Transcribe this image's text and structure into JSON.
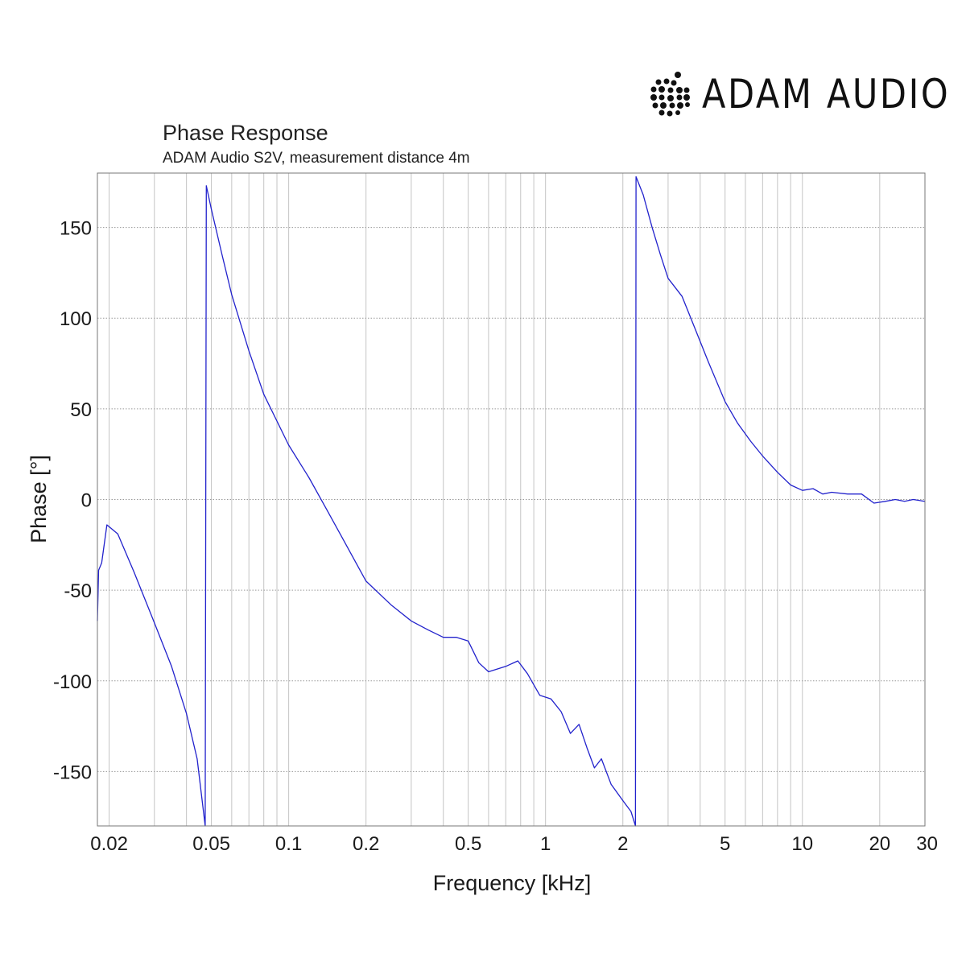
{
  "brand": {
    "name": "ADAM AUDIO",
    "logo_icon": "adam-dot-matrix-logo-icon"
  },
  "chart_data": {
    "type": "line",
    "title": "Phase Response",
    "subtitle": "ADAM Audio S2V, measurement distance 4m",
    "xlabel": "Frequency [kHz]",
    "ylabel": "Phase [°]",
    "xscale": "log",
    "xlim": [
      0.018,
      30
    ],
    "ylim": [
      -180,
      180
    ],
    "grid": true,
    "x_ticks": [
      {
        "value": 0.02,
        "label": "0.02"
      },
      {
        "value": 0.05,
        "label": "0.05"
      },
      {
        "value": 0.1,
        "label": "0.1"
      },
      {
        "value": 0.2,
        "label": "0.2"
      },
      {
        "value": 0.5,
        "label": "0.5"
      },
      {
        "value": 1,
        "label": "1"
      },
      {
        "value": 2,
        "label": "2"
      },
      {
        "value": 5,
        "label": "5"
      },
      {
        "value": 10,
        "label": "10"
      },
      {
        "value": 20,
        "label": "20"
      },
      {
        "value": 30,
        "label": "30"
      }
    ],
    "y_ticks": [
      {
        "value": 150,
        "label": "150"
      },
      {
        "value": 100,
        "label": "100"
      },
      {
        "value": 50,
        "label": "50"
      },
      {
        "value": 0,
        "label": "0"
      },
      {
        "value": -50,
        "label": "-50"
      },
      {
        "value": -100,
        "label": "-100"
      },
      {
        "value": -150,
        "label": "-150"
      }
    ],
    "series": [
      {
        "color": "#2222cc",
        "segments": [
          [
            [
              0.018,
              -67
            ],
            [
              0.0182,
              -39
            ],
            [
              0.0187,
              -35
            ],
            [
              0.0196,
              -14
            ],
            [
              0.0216,
              -19
            ],
            [
              0.025,
              -40
            ],
            [
              0.03,
              -68
            ],
            [
              0.035,
              -92
            ],
            [
              0.04,
              -118
            ],
            [
              0.044,
              -143
            ],
            [
              0.0473,
              -180
            ]
          ],
          [
            [
              0.0478,
              173
            ],
            [
              0.05,
              160
            ],
            [
              0.055,
              135
            ],
            [
              0.06,
              113
            ],
            [
              0.07,
              82
            ],
            [
              0.08,
              58
            ],
            [
              0.1,
              30
            ],
            [
              0.12,
              12
            ],
            [
              0.14,
              -5
            ],
            [
              0.16,
              -20
            ],
            [
              0.2,
              -45
            ],
            [
              0.25,
              -58
            ],
            [
              0.3,
              -67
            ],
            [
              0.35,
              -72
            ],
            [
              0.4,
              -76
            ],
            [
              0.45,
              -76
            ],
            [
              0.5,
              -78
            ],
            [
              0.55,
              -90
            ],
            [
              0.6,
              -95
            ],
            [
              0.7,
              -92
            ],
            [
              0.78,
              -89
            ],
            [
              0.85,
              -96
            ],
            [
              0.95,
              -108
            ],
            [
              1.05,
              -110
            ],
            [
              1.15,
              -117
            ],
            [
              1.25,
              -129
            ],
            [
              1.35,
              -124
            ],
            [
              1.45,
              -137
            ],
            [
              1.55,
              -148
            ],
            [
              1.65,
              -143
            ],
            [
              1.8,
              -157
            ],
            [
              2.0,
              -166
            ],
            [
              2.15,
              -172
            ],
            [
              2.24,
              -180
            ]
          ],
          [
            [
              2.25,
              178
            ],
            [
              2.4,
              168
            ],
            [
              2.6,
              150
            ],
            [
              2.8,
              135
            ],
            [
              3.0,
              122
            ],
            [
              3.4,
              112
            ],
            [
              3.8,
              95
            ],
            [
              4.3,
              76
            ],
            [
              5,
              54
            ],
            [
              5.6,
              42
            ],
            [
              6.3,
              32
            ],
            [
              7,
              24
            ],
            [
              8,
              15
            ],
            [
              9,
              8
            ],
            [
              10,
              5
            ],
            [
              11,
              6
            ],
            [
              12,
              3
            ],
            [
              13,
              4
            ],
            [
              15,
              3
            ],
            [
              17,
              3
            ],
            [
              19,
              -2
            ],
            [
              21,
              -1
            ],
            [
              23,
              0
            ],
            [
              25,
              -1
            ],
            [
              27,
              0
            ],
            [
              30,
              -1
            ]
          ]
        ]
      }
    ]
  }
}
